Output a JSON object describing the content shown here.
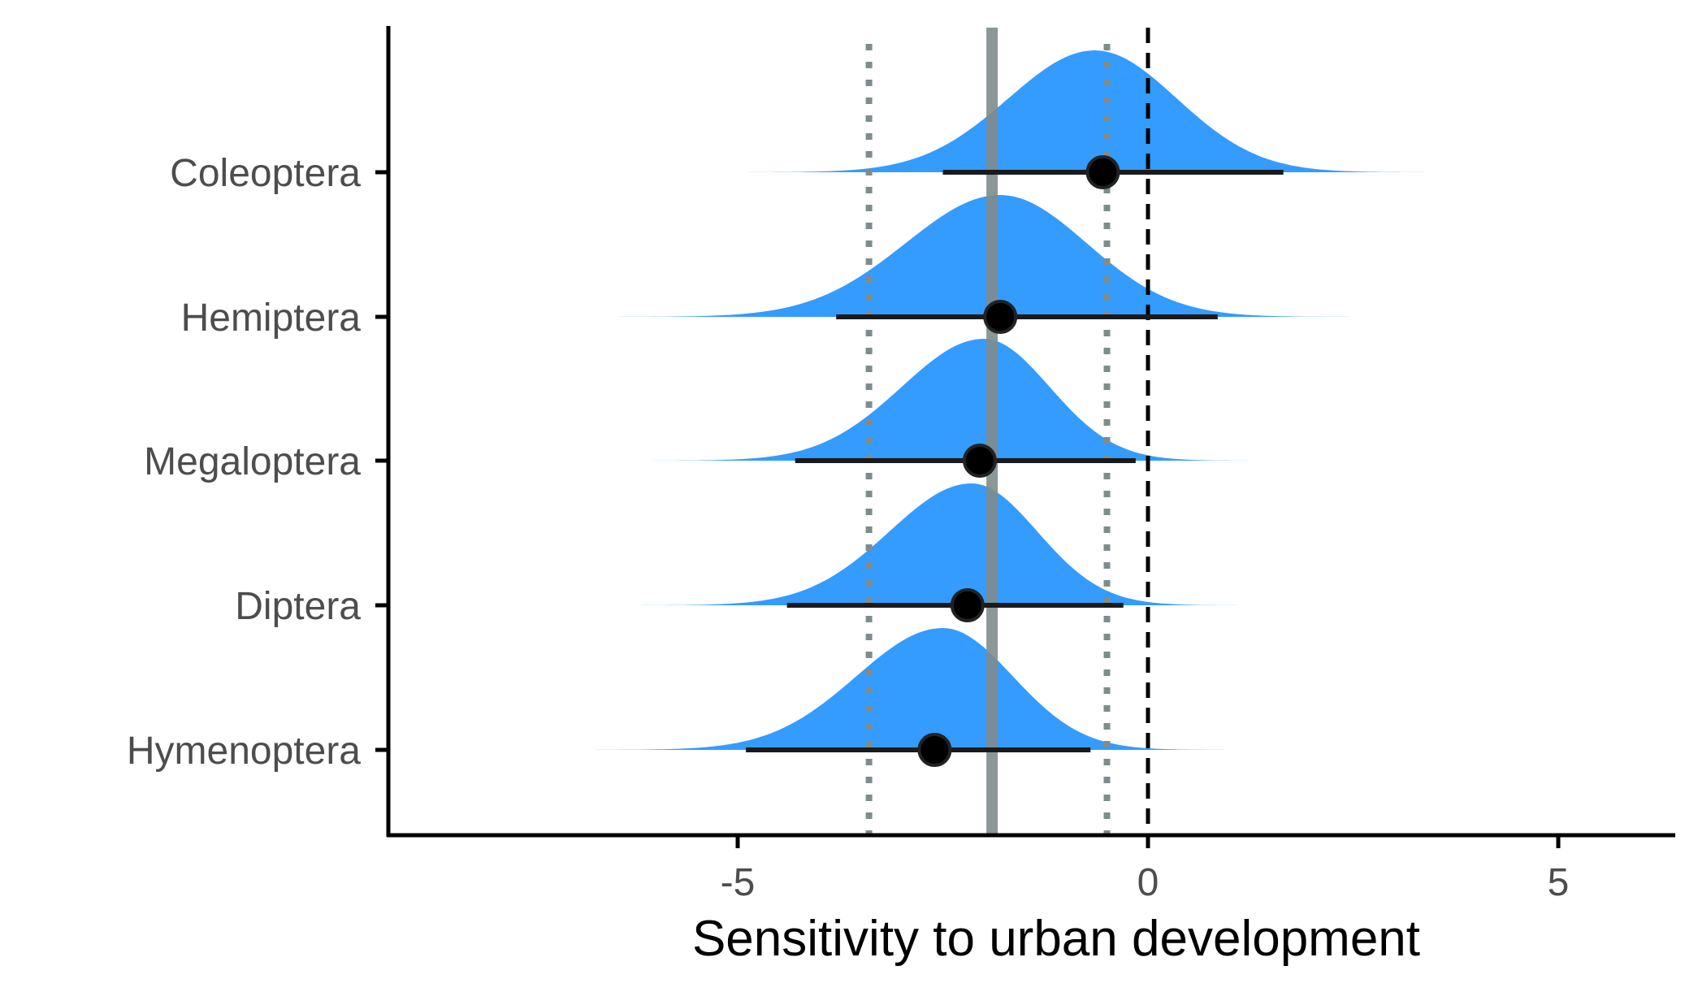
{
  "chart_data": {
    "type": "ridgeline",
    "xlabel": "Sensitivity to urban development",
    "ylabel": "",
    "xlim": [
      -9.3,
      6.5
    ],
    "x_ticks": [
      -5,
      0,
      5
    ],
    "x_tick_labels": [
      "-5",
      "0",
      "5"
    ],
    "grid": false,
    "colors": {
      "density_fill": "#1e90ff",
      "point": "#000000",
      "interval": "#1a1a1a",
      "overall_line": "#7f8c8d",
      "zero_line": "#000000"
    },
    "reference_lines": {
      "zero": 0,
      "overall_mean": -1.9,
      "overall_interval": [
        -3.4,
        -0.5
      ]
    },
    "categories": [
      "Coleoptera",
      "Hemiptera",
      "Megaloptera",
      "Diptera",
      "Hymenoptera"
    ],
    "series": [
      {
        "name": "Coleoptera",
        "mean": -0.55,
        "interval": [
          -2.5,
          1.65
        ],
        "mode": -0.65,
        "sd_left": 1.05,
        "sd_right": 1.0,
        "range": [
          -6.5,
          5.8
        ]
      },
      {
        "name": "Hemiptera",
        "mean": -1.8,
        "interval": [
          -3.8,
          0.85
        ],
        "mode": -1.8,
        "sd_left": 1.15,
        "sd_right": 1.05,
        "range": [
          -6.5,
          4.9
        ]
      },
      {
        "name": "Megaloptera",
        "mean": -2.05,
        "interval": [
          -4.3,
          -0.15
        ],
        "mode": -2.0,
        "sd_left": 1.0,
        "sd_right": 0.8,
        "range": [
          -7.5,
          3.6
        ]
      },
      {
        "name": "Diptera",
        "mean": -2.2,
        "interval": [
          -4.4,
          -0.3
        ],
        "mode": -2.15,
        "sd_left": 1.0,
        "sd_right": 0.8,
        "range": [
          -7.7,
          3.5
        ]
      },
      {
        "name": "Hymenoptera",
        "mean": -2.6,
        "interval": [
          -4.9,
          -0.7
        ],
        "mode": -2.5,
        "sd_left": 1.05,
        "sd_right": 0.85,
        "range": [
          -8.5,
          3.2
        ]
      }
    ]
  }
}
